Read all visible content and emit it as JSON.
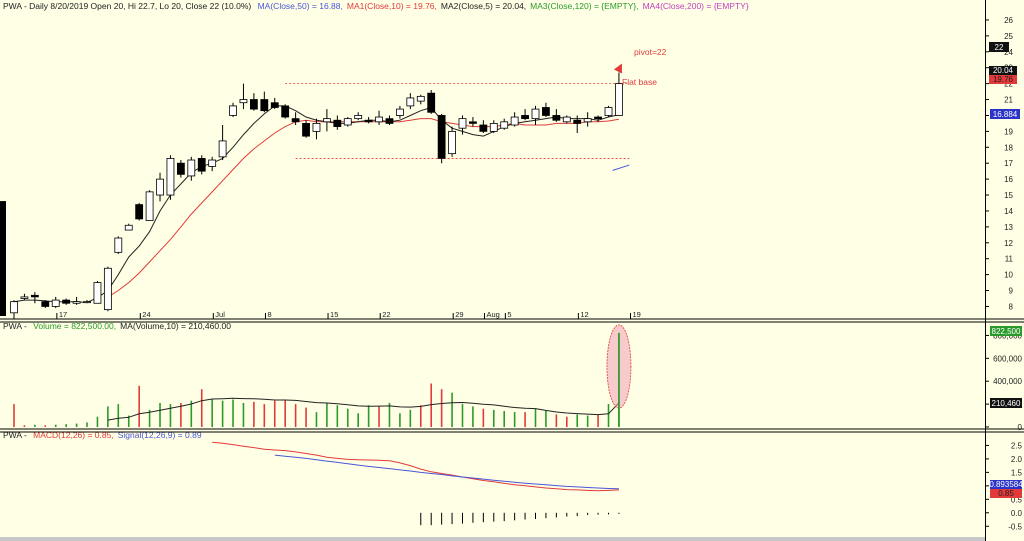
{
  "price_header": {
    "prefix": "PWA - Daily 8/20/2019 Open 20, Hi 22.7, Lo 20, Close 22 (10.0%)",
    "items": [
      {
        "text": "MA(Close,50) = 16.88,",
        "color": "#4a57d6"
      },
      {
        "text": "MA1(Close,10) = 19.76,",
        "color": "#e23a3a"
      },
      {
        "text": "MA2(Close,5) = 20.04,",
        "color": "#222222"
      },
      {
        "text": "MA3(Close,120) = {EMPTY},",
        "color": "#2a9a2a"
      },
      {
        "text": "MA4(Close,200) = {EMPTY}",
        "color": "#c03fc0"
      }
    ]
  },
  "volume_header": {
    "prefix": "PWA -",
    "items": [
      {
        "text": "Volume = 822,500.00,",
        "color": "#2a9a2a"
      },
      {
        "text": "MA(Volume,10) = 210,460.00",
        "color": "#222222"
      }
    ]
  },
  "macd_header": {
    "prefix": "PWA -",
    "items": [
      {
        "text": "MACD(12,26) = 0.85,",
        "color": "#e23a3a"
      },
      {
        "text": "Signal(12,26,9) = 0.89",
        "color": "#4a57d6"
      }
    ]
  },
  "annotations": {
    "pivot": "pivot=22",
    "base": "Flat base"
  },
  "right_labels": {
    "price_close": "22",
    "ma5": "20.04",
    "ma10": "19.76",
    "ma50": "16.884",
    "volume": "822,500",
    "volume_ma": "210,460",
    "macd": "0.85",
    "signal": "0.893584"
  },
  "colors": {
    "background": "#ffffe6",
    "axis": "#000000",
    "up_volume": "#2a9a2a",
    "down_volume": "#e23a3a",
    "ma50": "#4a57d6",
    "ma10": "#e23a3a",
    "ma5": "#222222",
    "macd": "#e23a3a",
    "signal": "#4a57d6",
    "pivot_line": "#e23a3a",
    "ellipse_fill": "#f0a0b4"
  },
  "chart_data": {
    "type": "candlestick",
    "date_ticks": [
      "17",
      "24",
      "Jul",
      "8",
      "15",
      "22",
      "29",
      "Aug",
      "5",
      "12",
      "19"
    ],
    "price_axis": {
      "ticks": [
        8,
        9,
        10,
        11,
        12,
        13,
        14,
        15,
        16,
        17,
        18,
        19,
        20,
        21,
        22,
        23,
        24,
        25,
        26
      ],
      "ylim": [
        7.4,
        26.5
      ]
    },
    "candles": [
      {
        "o": 7.6,
        "h": 8.4,
        "l": 7.2,
        "c": 8.3
      },
      {
        "o": 8.5,
        "h": 8.8,
        "l": 8.4,
        "c": 8.6
      },
      {
        "o": 8.7,
        "h": 8.9,
        "l": 8.2,
        "c": 8.6
      },
      {
        "o": 8.3,
        "h": 8.4,
        "l": 7.9,
        "c": 8.0
      },
      {
        "o": 8.0,
        "h": 8.6,
        "l": 7.9,
        "c": 8.4
      },
      {
        "o": 8.4,
        "h": 8.5,
        "l": 8.1,
        "c": 8.2
      },
      {
        "o": 8.2,
        "h": 8.6,
        "l": 8.1,
        "c": 8.3
      },
      {
        "o": 8.3,
        "h": 8.4,
        "l": 8.2,
        "c": 8.3
      },
      {
        "o": 8.2,
        "h": 9.6,
        "l": 8.2,
        "c": 9.5
      },
      {
        "o": 7.8,
        "h": 10.5,
        "l": 7.7,
        "c": 10.4
      },
      {
        "o": 11.4,
        "h": 12.4,
        "l": 11.3,
        "c": 12.3
      },
      {
        "o": 12.8,
        "h": 13.2,
        "l": 12.8,
        "c": 13.1
      },
      {
        "o": 14.4,
        "h": 14.5,
        "l": 13.4,
        "c": 13.5
      },
      {
        "o": 13.4,
        "h": 15.3,
        "l": 13.4,
        "c": 15.2
      },
      {
        "o": 15.0,
        "h": 16.4,
        "l": 14.6,
        "c": 16.0
      },
      {
        "o": 15.0,
        "h": 17.5,
        "l": 14.7,
        "c": 17.3
      },
      {
        "o": 17.0,
        "h": 17.2,
        "l": 16.1,
        "c": 16.3
      },
      {
        "o": 16.2,
        "h": 17.4,
        "l": 15.9,
        "c": 17.2
      },
      {
        "o": 17.3,
        "h": 17.5,
        "l": 16.3,
        "c": 16.5
      },
      {
        "o": 16.8,
        "h": 17.4,
        "l": 16.5,
        "c": 17.2
      },
      {
        "o": 17.4,
        "h": 19.4,
        "l": 17.2,
        "c": 18.4
      },
      {
        "o": 20.0,
        "h": 20.8,
        "l": 19.9,
        "c": 20.6
      },
      {
        "o": 20.8,
        "h": 22.0,
        "l": 20.4,
        "c": 21.0
      },
      {
        "o": 21.0,
        "h": 21.4,
        "l": 20.3,
        "c": 20.4
      },
      {
        "o": 21.0,
        "h": 21.5,
        "l": 20.2,
        "c": 20.3
      },
      {
        "o": 20.8,
        "h": 21.1,
        "l": 20.4,
        "c": 20.5
      },
      {
        "o": 20.6,
        "h": 20.7,
        "l": 19.8,
        "c": 19.9
      },
      {
        "o": 19.8,
        "h": 20.2,
        "l": 19.4,
        "c": 19.6
      },
      {
        "o": 19.5,
        "h": 19.7,
        "l": 18.6,
        "c": 18.7
      },
      {
        "o": 19.0,
        "h": 19.8,
        "l": 18.5,
        "c": 19.5
      },
      {
        "o": 19.6,
        "h": 20.4,
        "l": 19.0,
        "c": 19.8
      },
      {
        "o": 19.7,
        "h": 20.0,
        "l": 19.1,
        "c": 19.3
      },
      {
        "o": 19.4,
        "h": 19.9,
        "l": 19.3,
        "c": 19.8
      },
      {
        "o": 19.8,
        "h": 20.2,
        "l": 19.7,
        "c": 20.0
      },
      {
        "o": 19.7,
        "h": 19.9,
        "l": 19.5,
        "c": 19.6
      },
      {
        "o": 19.6,
        "h": 20.3,
        "l": 19.4,
        "c": 19.9
      },
      {
        "o": 19.8,
        "h": 20.0,
        "l": 19.4,
        "c": 19.5
      },
      {
        "o": 20.0,
        "h": 20.6,
        "l": 19.8,
        "c": 20.4
      },
      {
        "o": 20.6,
        "h": 21.4,
        "l": 20.4,
        "c": 21.1
      },
      {
        "o": 20.9,
        "h": 21.3,
        "l": 20.7,
        "c": 21.2
      },
      {
        "o": 21.4,
        "h": 21.6,
        "l": 20.1,
        "c": 20.2
      },
      {
        "o": 20.0,
        "h": 20.1,
        "l": 17.0,
        "c": 17.3
      },
      {
        "o": 17.6,
        "h": 19.3,
        "l": 17.4,
        "c": 19.0
      },
      {
        "o": 19.2,
        "h": 20.0,
        "l": 18.8,
        "c": 19.8
      },
      {
        "o": 19.6,
        "h": 19.9,
        "l": 19.3,
        "c": 19.5
      },
      {
        "o": 19.4,
        "h": 19.7,
        "l": 18.9,
        "c": 19.0
      },
      {
        "o": 19.0,
        "h": 19.7,
        "l": 18.9,
        "c": 19.5
      },
      {
        "o": 19.2,
        "h": 19.8,
        "l": 19.1,
        "c": 19.6
      },
      {
        "o": 19.4,
        "h": 20.2,
        "l": 19.3,
        "c": 19.9
      },
      {
        "o": 20.0,
        "h": 20.4,
        "l": 19.7,
        "c": 19.8
      },
      {
        "o": 19.8,
        "h": 20.6,
        "l": 19.4,
        "c": 20.4
      },
      {
        "o": 20.5,
        "h": 20.8,
        "l": 19.9,
        "c": 20.0
      },
      {
        "o": 20.0,
        "h": 20.4,
        "l": 19.6,
        "c": 19.7
      },
      {
        "o": 19.6,
        "h": 20.0,
        "l": 19.5,
        "c": 19.9
      },
      {
        "o": 19.7,
        "h": 20.0,
        "l": 18.9,
        "c": 19.5
      },
      {
        "o": 19.6,
        "h": 20.2,
        "l": 19.3,
        "c": 19.8
      },
      {
        "o": 19.9,
        "h": 20.0,
        "l": 19.6,
        "c": 19.8
      },
      {
        "o": 20.0,
        "h": 20.6,
        "l": 19.9,
        "c": 20.5
      },
      {
        "o": 20.0,
        "h": 22.7,
        "l": 20.0,
        "c": 22.0
      }
    ],
    "ma5": [
      8.3,
      8.4,
      8.4,
      8.35,
      8.3,
      8.3,
      8.3,
      8.25,
      8.55,
      9.0,
      10.0,
      11.1,
      11.8,
      12.7,
      14.0,
      15.0,
      15.7,
      16.4,
      16.8,
      17.0,
      17.3,
      18.0,
      18.8,
      19.5,
      20.1,
      20.6,
      20.6,
      20.3,
      19.9,
      19.7,
      19.6,
      19.5,
      19.5,
      19.6,
      19.7,
      19.7,
      19.6,
      19.7,
      20.0,
      20.3,
      20.5,
      19.7,
      19.2,
      19.0,
      18.8,
      18.7,
      19.0,
      19.3,
      19.5,
      19.6,
      19.7,
      19.8,
      19.9,
      19.8,
      19.8,
      19.8,
      19.7,
      19.9,
      20.04
    ],
    "ma10": [
      null,
      null,
      null,
      null,
      null,
      null,
      null,
      null,
      null,
      8.6,
      9.0,
      9.5,
      10.1,
      10.8,
      11.5,
      12.2,
      13.0,
      13.8,
      14.5,
      15.2,
      15.9,
      16.6,
      17.3,
      17.9,
      18.4,
      18.9,
      19.3,
      19.6,
      19.7,
      19.6,
      19.6,
      19.6,
      19.6,
      19.6,
      19.6,
      19.6,
      19.6,
      19.6,
      19.7,
      19.8,
      19.8,
      19.6,
      19.5,
      19.4,
      19.3,
      19.3,
      19.3,
      19.4,
      19.5,
      19.4,
      19.4,
      19.4,
      19.5,
      19.5,
      19.5,
      19.6,
      19.6,
      19.65,
      19.76
    ],
    "ma50_segment": {
      "from": 16.55,
      "to": 16.884
    },
    "volume": {
      "ticks": [
        0,
        200000,
        400000,
        600000,
        800000
      ],
      "ylim": [
        0,
        830000
      ],
      "up": [
        false,
        false,
        true,
        false,
        true,
        true,
        true,
        true,
        true,
        true,
        true,
        true,
        false,
        true,
        true,
        true,
        false,
        true,
        false,
        true,
        true,
        true,
        true,
        false,
        false,
        false,
        false,
        false,
        false,
        true,
        true,
        true,
        true,
        true,
        true,
        false,
        true,
        true,
        true,
        false,
        false,
        false,
        true,
        true,
        true,
        false,
        true,
        true,
        true,
        false,
        true,
        true,
        false,
        false,
        true,
        true,
        false,
        true,
        true
      ],
      "values": [
        200000,
        15000,
        20000,
        15000,
        20000,
        25000,
        30000,
        40000,
        90000,
        180000,
        200000,
        100000,
        360000,
        150000,
        210000,
        200000,
        210000,
        230000,
        330000,
        240000,
        230000,
        240000,
        210000,
        220000,
        200000,
        230000,
        240000,
        200000,
        170000,
        130000,
        210000,
        190000,
        160000,
        120000,
        190000,
        180000,
        210000,
        120000,
        150000,
        190000,
        380000,
        330000,
        300000,
        200000,
        180000,
        160000,
        150000,
        140000,
        130000,
        130000,
        160000,
        140000,
        110000,
        90000,
        110000,
        100000,
        110000,
        200000,
        822500
      ],
      "ma10": [
        null,
        null,
        null,
        null,
        null,
        null,
        null,
        null,
        null,
        60000,
        76000,
        85000,
        115000,
        128000,
        147000,
        164000,
        182000,
        201000,
        230000,
        245000,
        247000,
        252000,
        248000,
        246000,
        243000,
        236000,
        236000,
        232000,
        223000,
        213000,
        210000,
        203000,
        194000,
        184000,
        182000,
        183000,
        184000,
        176000,
        174000,
        180000,
        196000,
        205000,
        211000,
        214000,
        208000,
        199000,
        193000,
        181000,
        170000,
        163000,
        161000,
        145000,
        131000,
        122000,
        117000,
        113000,
        108000,
        115000,
        210460
      ]
    },
    "macd": {
      "ticks": [
        -0.5,
        0.0,
        0.5,
        1.0,
        1.5,
        2.0,
        2.5
      ],
      "ylim": [
        -0.75,
        2.85
      ],
      "macd_line": [
        2.62,
        2.58,
        2.53,
        2.47,
        2.42,
        2.36,
        2.33,
        2.31,
        2.26,
        2.2,
        2.14,
        2.06,
        2.02,
        1.98,
        1.97,
        1.96,
        1.95,
        1.93,
        1.85,
        1.75,
        1.62,
        1.52,
        1.46,
        1.4,
        1.33,
        1.26,
        1.2,
        1.15,
        1.09,
        1.04,
        1.0,
        0.96,
        0.92,
        0.89,
        0.86,
        0.85,
        0.83,
        0.82,
        0.83,
        0.85
      ],
      "signal_line": [
        2.14,
        2.1,
        2.06,
        2.02,
        1.97,
        1.92,
        1.87,
        1.82,
        1.77,
        1.72,
        1.68,
        1.64,
        1.59,
        1.55,
        1.5,
        1.46,
        1.42,
        1.37,
        1.33,
        1.29,
        1.25,
        1.21,
        1.17,
        1.13,
        1.1,
        1.07,
        1.04,
        1.01,
        0.98,
        0.96,
        0.94,
        0.92,
        0.9,
        0.89
      ],
      "histogram": [
        -0.46,
        -0.46,
        -0.44,
        -0.42,
        -0.4,
        -0.37,
        -0.35,
        -0.33,
        -0.31,
        -0.28,
        -0.25,
        -0.23,
        -0.2,
        -0.17,
        -0.14,
        -0.12,
        -0.08,
        -0.07,
        -0.06,
        -0.04
      ]
    }
  }
}
